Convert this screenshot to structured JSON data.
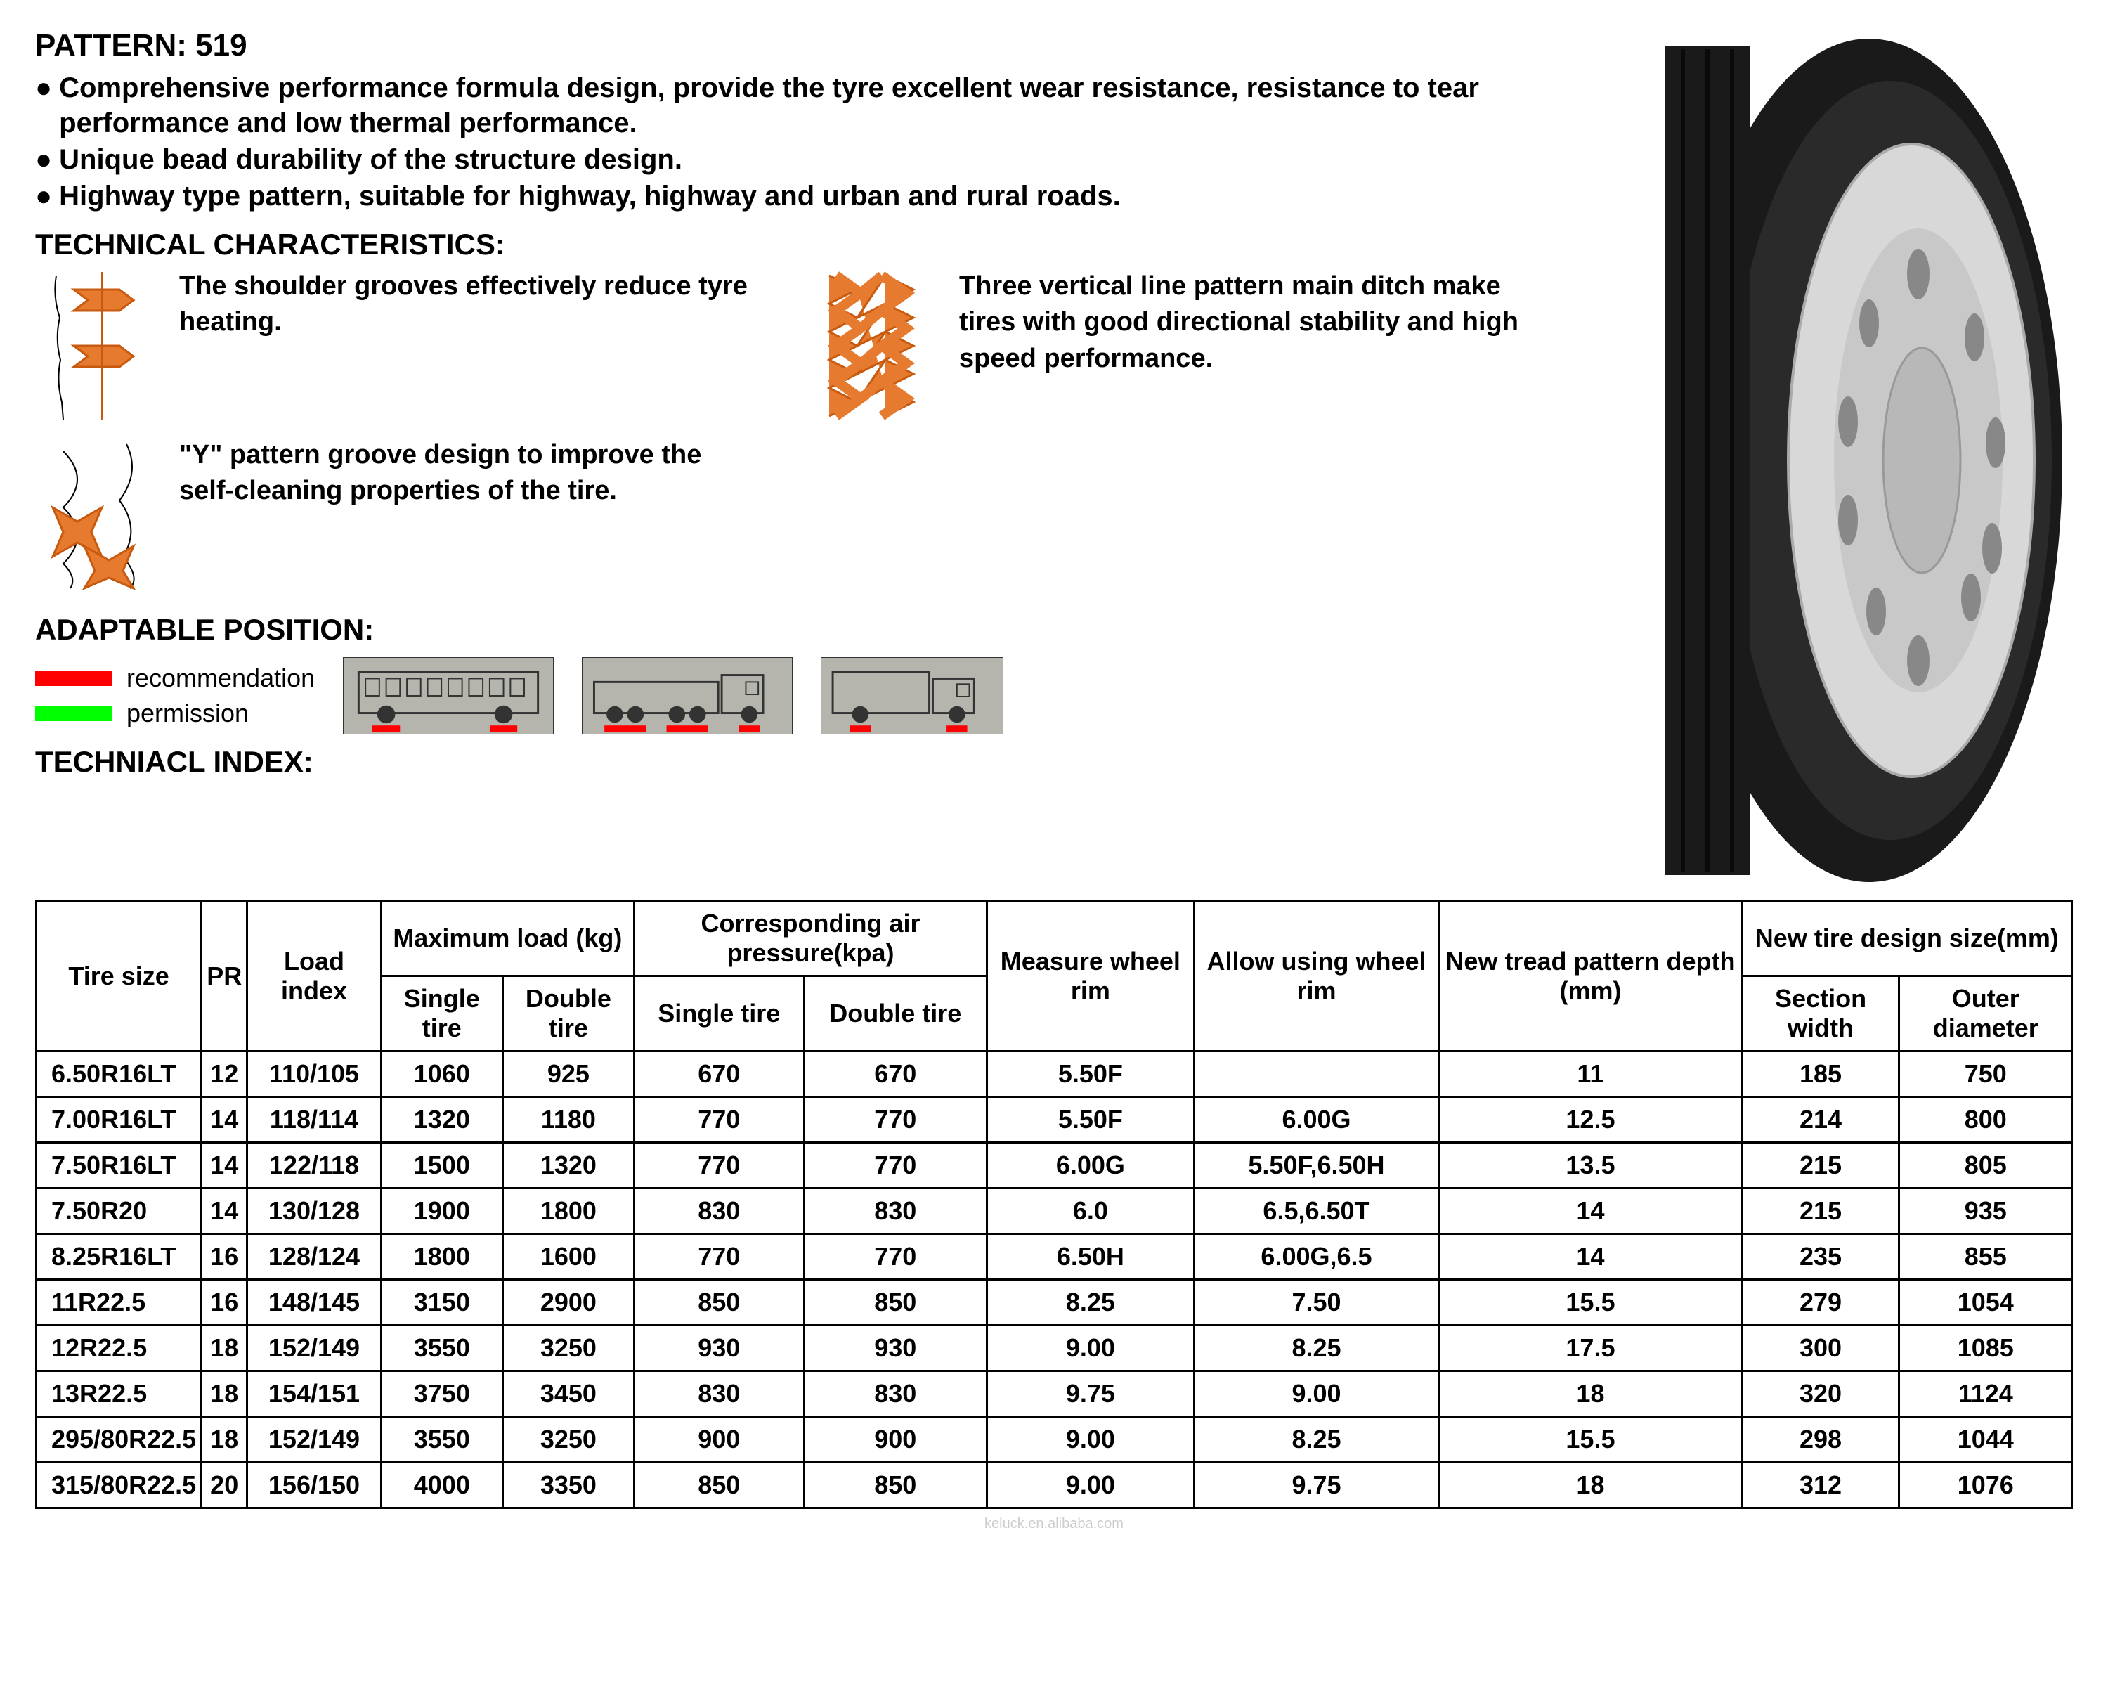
{
  "header": {
    "pattern_label": "PATTERN:  519",
    "bullets": [
      "Comprehensive performance formula design, provide the tyre excellent wear resistance, resistance to tear performance and low thermal performance.",
      "Unique bead durability of the structure design.",
      "Highway type pattern, suitable for highway, highway and urban and rural roads."
    ],
    "tech_char_heading": "TECHNICAL CHARACTERISTICS:"
  },
  "tech_chars": [
    {
      "text": "The shoulder grooves effectively reduce tyre heating."
    },
    {
      "text": "Three vertical line pattern main ditch make tires with good directional stability and high speed performance."
    },
    {
      "text": "\"Y\"  pattern groove design to improve the self-cleaning properties of the tire."
    }
  ],
  "adaptable": {
    "heading": "ADAPTABLE POSITION:",
    "legend": [
      {
        "color": "#ff0000",
        "label": "recommendation"
      },
      {
        "color": "#00ff00",
        "label": "permission"
      }
    ]
  },
  "tech_index_heading": "TECHNIACL INDEX:",
  "colors": {
    "diagram_fill": "#e67a2e",
    "diagram_stroke": "#c85a10",
    "tire_black": "#1a1a1a",
    "tire_grey": "#888",
    "rim": "#d8d8d8",
    "vehicle_bg": "#b5b5ad",
    "red": "#ff0000",
    "green": "#00ff00",
    "border": "#000000",
    "text": "#000000",
    "watermark": "#cccccc"
  },
  "table": {
    "group_headers": {
      "tire_size": "Tire size",
      "pr": "PR",
      "load_index": "Load index",
      "max_load": "Maximum load (kg)",
      "air_pressure": "Corresponding air pressure(kpa)",
      "measure_rim": "Measure wheel rim",
      "allow_rim": "Allow using wheel rim",
      "tread_depth": "New tread pattern depth (mm)",
      "design_size": "New tire design size(mm)"
    },
    "sub_headers": {
      "single_tire": "Single tire",
      "double_tire": "Double tire",
      "section_width": "Section width",
      "outer_diameter": "Outer diameter"
    },
    "rows": [
      {
        "size": "6.50R16LT",
        "pr": "12",
        "load_index": "110/105",
        "ml_single": "1060",
        "ml_double": "925",
        "ap_single": "670",
        "ap_double": "670",
        "measure_rim": "5.50F",
        "allow_rim": "",
        "tread": "11",
        "sw": "185",
        "od": "750"
      },
      {
        "size": "7.00R16LT",
        "pr": "14",
        "load_index": "118/114",
        "ml_single": "1320",
        "ml_double": "1180",
        "ap_single": "770",
        "ap_double": "770",
        "measure_rim": "5.50F",
        "allow_rim": "6.00G",
        "tread": "12.5",
        "sw": "214",
        "od": "800"
      },
      {
        "size": "7.50R16LT",
        "pr": "14",
        "load_index": "122/118",
        "ml_single": "1500",
        "ml_double": "1320",
        "ap_single": "770",
        "ap_double": "770",
        "measure_rim": "6.00G",
        "allow_rim": "5.50F,6.50H",
        "tread": "13.5",
        "sw": "215",
        "od": "805"
      },
      {
        "size": "7.50R20",
        "pr": "14",
        "load_index": "130/128",
        "ml_single": "1900",
        "ml_double": "1800",
        "ap_single": "830",
        "ap_double": "830",
        "measure_rim": "6.0",
        "allow_rim": "6.5,6.50T",
        "tread": "14",
        "sw": "215",
        "od": "935"
      },
      {
        "size": "8.25R16LT",
        "pr": "16",
        "load_index": "128/124",
        "ml_single": "1800",
        "ml_double": "1600",
        "ap_single": "770",
        "ap_double": "770",
        "measure_rim": "6.50H",
        "allow_rim": "6.00G,6.5",
        "tread": "14",
        "sw": "235",
        "od": "855"
      },
      {
        "size": "11R22.5",
        "pr": "16",
        "load_index": "148/145",
        "ml_single": "3150",
        "ml_double": "2900",
        "ap_single": "850",
        "ap_double": "850",
        "measure_rim": "8.25",
        "allow_rim": "7.50",
        "tread": "15.5",
        "sw": "279",
        "od": "1054"
      },
      {
        "size": "12R22.5",
        "pr": "18",
        "load_index": "152/149",
        "ml_single": "3550",
        "ml_double": "3250",
        "ap_single": "930",
        "ap_double": "930",
        "measure_rim": "9.00",
        "allow_rim": "8.25",
        "tread": "17.5",
        "sw": "300",
        "od": "1085"
      },
      {
        "size": "13R22.5",
        "pr": "18",
        "load_index": "154/151",
        "ml_single": "3750",
        "ml_double": "3450",
        "ap_single": "830",
        "ap_double": "830",
        "measure_rim": "9.75",
        "allow_rim": "9.00",
        "tread": "18",
        "sw": "320",
        "od": "1124"
      },
      {
        "size": "295/80R22.5",
        "pr": "18",
        "load_index": "152/149",
        "ml_single": "3550",
        "ml_double": "3250",
        "ap_single": "900",
        "ap_double": "900",
        "measure_rim": "9.00",
        "allow_rim": "8.25",
        "tread": "15.5",
        "sw": "298",
        "od": "1044"
      },
      {
        "size": "315/80R22.5",
        "pr": "20",
        "load_index": "156/150",
        "ml_single": "4000",
        "ml_double": "3350",
        "ap_single": "850",
        "ap_double": "850",
        "measure_rim": "9.00",
        "allow_rim": "9.75",
        "tread": "18",
        "sw": "312",
        "od": "1076"
      }
    ]
  },
  "watermark": "keluck.en.alibaba.com"
}
